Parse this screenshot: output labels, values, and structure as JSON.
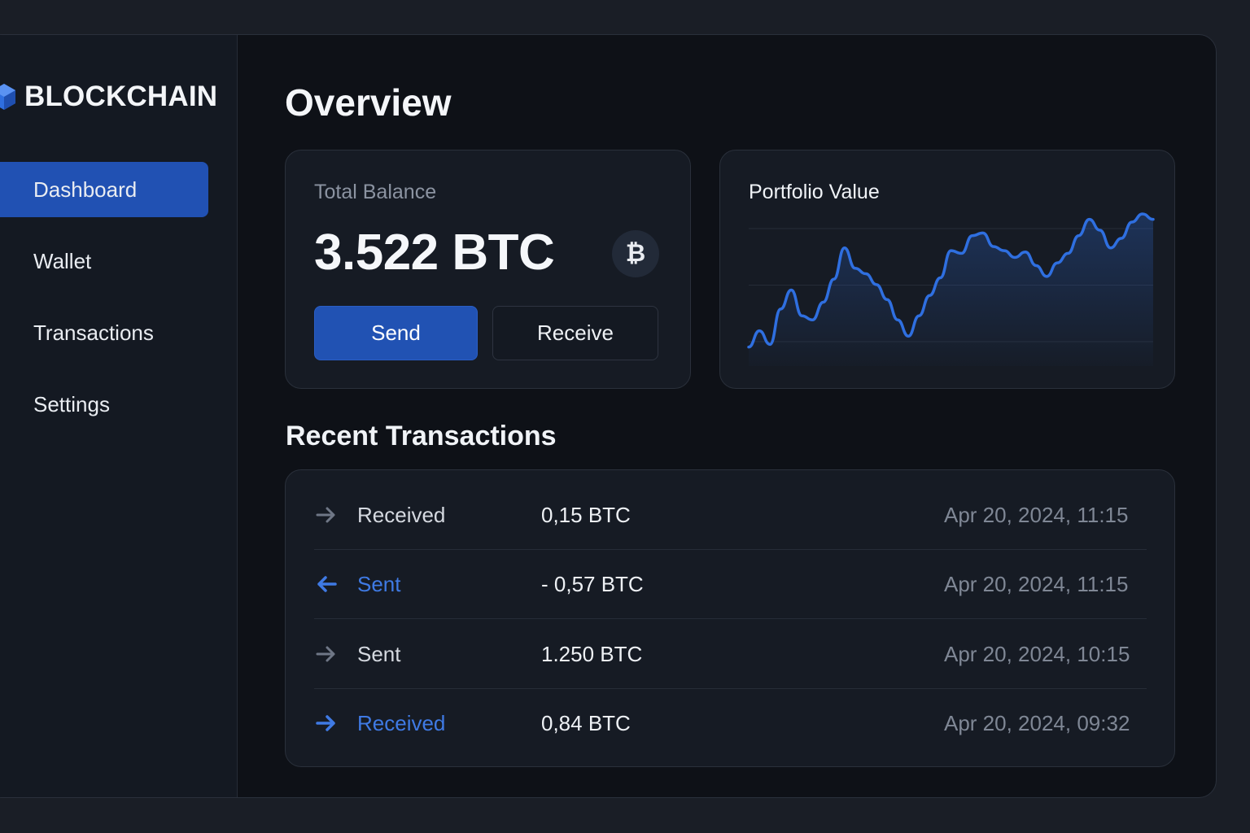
{
  "brand": {
    "name": "BLOCKCHAIN",
    "icon": "cube-logo-icon",
    "color": "#2f6fe0"
  },
  "sidebar": {
    "items": [
      {
        "label": "Dashboard",
        "icon": "dashboard-icon",
        "active": true
      },
      {
        "label": "Wallet",
        "icon": "wallet-icon",
        "active": false
      },
      {
        "label": "Transactions",
        "icon": "transactions-icon",
        "active": false
      },
      {
        "label": "Settings",
        "icon": "gear-icon",
        "active": false
      }
    ]
  },
  "page": {
    "title": "Overview"
  },
  "balance": {
    "label": "Total Balance",
    "value": "3.522 BTC",
    "badge": "₿",
    "send_label": "Send",
    "receive_label": "Receive"
  },
  "chart_data": {
    "type": "area",
    "title": "Portfolio Value",
    "xlabel": "",
    "ylabel": "",
    "grid": true,
    "ylim": [
      0,
      100
    ],
    "series": [
      {
        "values": [
          2,
          14,
          4,
          30,
          44,
          25,
          22,
          35,
          52,
          75,
          60,
          56,
          48,
          37,
          22,
          10,
          25,
          40,
          53,
          73,
          71,
          84,
          86,
          76,
          73,
          68,
          72,
          62,
          54,
          64,
          71,
          84,
          96,
          88,
          75,
          82,
          94,
          100,
          96
        ]
      }
    ],
    "colors": {
      "line": "#2f6fe0",
      "fill": "#2f6fe0"
    }
  },
  "transactions": {
    "title": "Recent Transactions",
    "rows": [
      {
        "type": "Received",
        "amount": "0,15 BTC",
        "date": "Apr 20, 2024, 11:15",
        "icon": "arrow-right-icon",
        "accent": false
      },
      {
        "type": "Sent",
        "amount": "- 0,57 BTC",
        "date": "Apr 20, 2024, 11:15",
        "icon": "arrow-left-icon",
        "accent": true
      },
      {
        "type": "Sent",
        "amount": "1.250 BTC",
        "date": "Apr 20, 2024, 10:15",
        "icon": "arrow-right-icon",
        "accent": false
      },
      {
        "type": "Received",
        "amount": "0,84 BTC",
        "date": "Apr 20, 2024, 09:32",
        "icon": "arrow-right-icon",
        "accent": true
      }
    ]
  },
  "colors": {
    "accent": "#2152b3",
    "accent_text": "#3f7ae4",
    "background": "#0e1117",
    "card": "#161b24"
  }
}
